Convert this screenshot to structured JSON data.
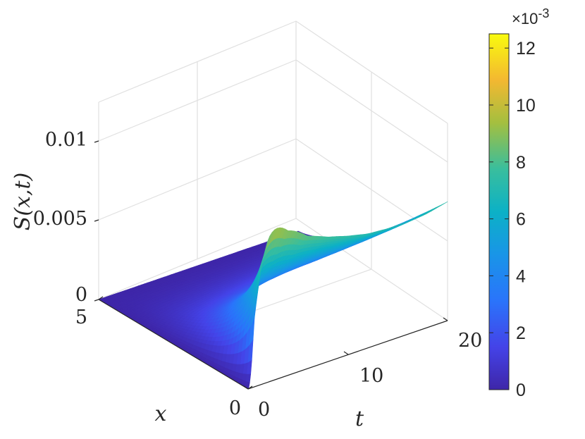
{
  "chart_data": {
    "type": "surface3d",
    "title": "",
    "x_axis": {
      "label": "x",
      "range": [
        0,
        5
      ],
      "ticks": [
        "0",
        "5"
      ]
    },
    "t_axis": {
      "label": "t",
      "range": [
        0,
        20
      ],
      "ticks": [
        "0",
        "10",
        "20"
      ]
    },
    "z_axis": {
      "label": "S(x,t)",
      "range": [
        0,
        0.0125
      ],
      "ticks": [
        "0",
        "0.005",
        "0.01"
      ]
    },
    "surface_summary": {
      "peak": {
        "x": 0,
        "t": 0.5,
        "S": 0.0125
      },
      "t_samples": [
        0,
        2,
        4,
        6,
        8,
        10,
        12,
        14,
        16,
        18,
        20
      ],
      "S_at_x0": [
        0.0,
        0.0122,
        0.0098,
        0.0085,
        0.0079,
        0.0075,
        0.0072,
        0.0071,
        0.0071,
        0.0072,
        0.0075
      ],
      "S_at_x5": [
        0.0,
        0.0,
        0.0,
        0.0,
        0.0,
        0.0,
        0.0,
        0.0,
        0.0,
        0.0,
        0.0
      ]
    },
    "colorbar": {
      "colormap": "parula",
      "range": [
        0,
        0.0125
      ],
      "ticks": [
        "0",
        "2",
        "4",
        "6",
        "8",
        "10",
        "12"
      ],
      "exponent_label": "×10^-3"
    },
    "grid": true,
    "colors": {
      "low": "#3e26a8",
      "mid": "#12b1c2",
      "high": "#f9fb0e"
    }
  }
}
